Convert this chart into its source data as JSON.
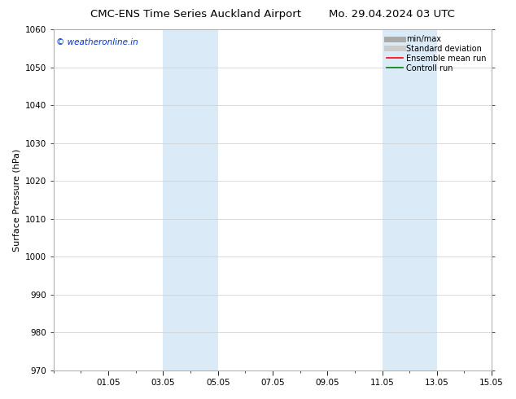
{
  "title_left": "CMC-ENS Time Series Auckland Airport",
  "title_right": "Mo. 29.04.2024 03 UTC",
  "ylabel": "Surface Pressure (hPa)",
  "watermark": "© weatheronline.in",
  "watermark_color": "#0033cc",
  "ylim": [
    970,
    1060
  ],
  "yticks": [
    970,
    980,
    990,
    1000,
    1010,
    1020,
    1030,
    1040,
    1050,
    1060
  ],
  "xlim": [
    0,
    16
  ],
  "xtick_labels": [
    "01.05",
    "03.05",
    "05.05",
    "07.05",
    "09.05",
    "11.05",
    "13.05",
    "15.05"
  ],
  "xtick_positions": [
    2,
    4,
    6,
    8,
    10,
    12,
    14,
    16
  ],
  "shading_regions": [
    {
      "x_start": 4.0,
      "x_end": 6.0,
      "color": "#daeaf7"
    },
    {
      "x_start": 12.0,
      "x_end": 14.0,
      "color": "#daeaf7"
    }
  ],
  "legend_entries": [
    {
      "label": "min/max",
      "color": "#aaaaaa",
      "lw": 5
    },
    {
      "label": "Standard deviation",
      "color": "#cccccc",
      "lw": 5
    },
    {
      "label": "Ensemble mean run",
      "color": "red",
      "lw": 1.2
    },
    {
      "label": "Controll run",
      "color": "green",
      "lw": 1.2
    }
  ],
  "background_color": "#ffffff",
  "grid_color": "#cccccc",
  "spine_color": "#aaaaaa",
  "title_fontsize": 9.5,
  "label_fontsize": 8,
  "tick_fontsize": 7.5,
  "legend_fontsize": 7,
  "watermark_fontsize": 7.5
}
